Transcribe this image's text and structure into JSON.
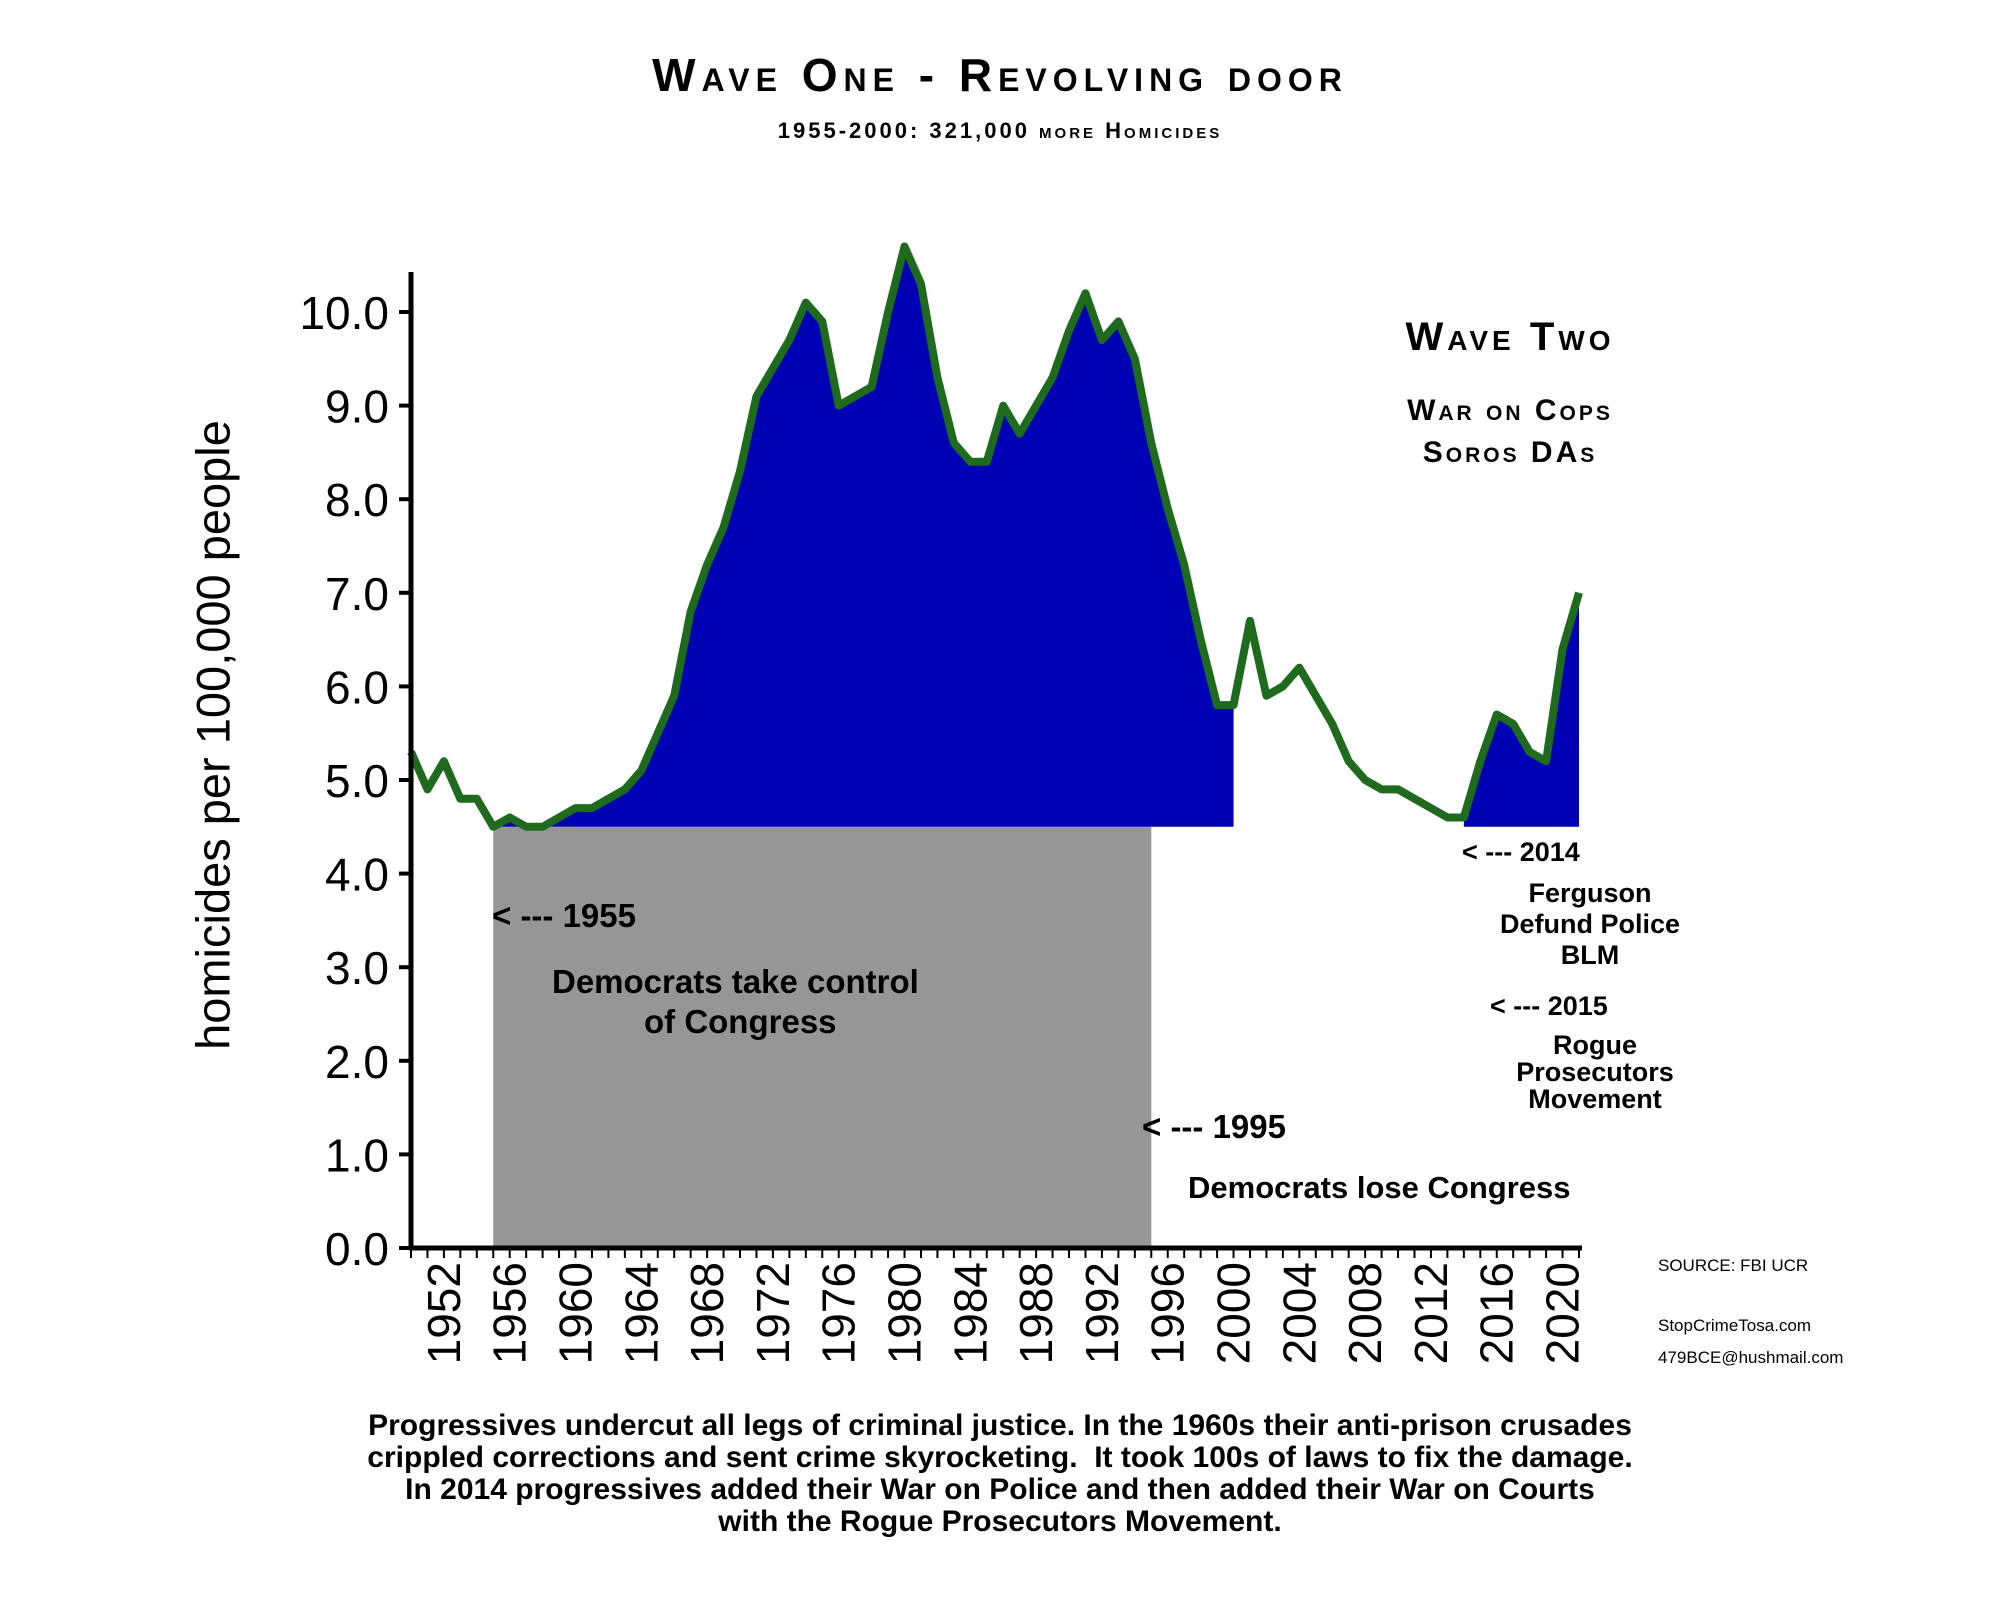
{
  "title": "Wave One - Revolving door",
  "subtitle": "1955-2000: 321,000 more Homicides",
  "wave_two": {
    "title": "Wave Two",
    "line1": "War on Cops",
    "line2": "Soros DAs"
  },
  "annotations": {
    "a1955": "< --- 1955",
    "dem_take_1": "Democrats take control",
    "dem_take_2": "of Congress",
    "a1995": "< --- 1995",
    "dem_lose": "Democrats lose Congress",
    "a2014": "< --- 2014",
    "ferguson_1": "Ferguson",
    "ferguson_2": "Defund Police",
    "ferguson_3": "BLM",
    "a2015": "< --- 2015",
    "rogue_1": "Rogue",
    "rogue_2": "Prosecutors",
    "rogue_3": "Movement"
  },
  "source": "SOURCE: FBI UCR",
  "site": "StopCrimeTosa.com",
  "email": "479BCE@hushmail.com",
  "caption": [
    "Progressives undercut all legs of criminal justice. In the 1960s their anti-prison crusades",
    "crippled corrections and sent crime skyrocketing.  It took 100s of laws to fix the damage.",
    "In 2014 progressives added their War on Police and then added their War on Courts",
    "with the Rogue Prosecutors Movement."
  ],
  "colors": {
    "line": "#1e6b1e",
    "fill": "#0000b4",
    "shade": "#969696"
  },
  "chart_data": {
    "type": "area",
    "xlabel": "",
    "ylabel": "homicides per 100,000 people",
    "xlim": [
      1950,
      2021
    ],
    "ylim": [
      0,
      10.0
    ],
    "x_ticks": [
      1952,
      1956,
      1960,
      1964,
      1968,
      1972,
      1976,
      1980,
      1984,
      1988,
      1992,
      1996,
      2000,
      2004,
      2008,
      2012,
      2016,
      2020
    ],
    "y_ticks": [
      0.0,
      1.0,
      2.0,
      3.0,
      4.0,
      5.0,
      6.0,
      7.0,
      8.0,
      9.0,
      10.0
    ],
    "baseline": 4.5,
    "shaded_range": [
      1955,
      1995
    ],
    "fill_ranges": [
      [
        1955,
        2000
      ],
      [
        2014,
        2021
      ]
    ],
    "series": [
      {
        "x": [
          1950,
          1951,
          1952,
          1953,
          1954,
          1955,
          1956,
          1957,
          1958,
          1959,
          1960,
          1961,
          1962,
          1963,
          1964,
          1965,
          1966,
          1967,
          1968,
          1969,
          1970,
          1971,
          1972,
          1973,
          1974,
          1975,
          1976,
          1977,
          1978,
          1979,
          1980,
          1981,
          1982,
          1983,
          1984,
          1985,
          1986,
          1987,
          1988,
          1989,
          1990,
          1991,
          1992,
          1993,
          1994,
          1995,
          1996,
          1997,
          1998,
          1999,
          2000,
          2001,
          2002,
          2003,
          2004,
          2005,
          2006,
          2007,
          2008,
          2009,
          2010,
          2011,
          2012,
          2013,
          2014,
          2015,
          2016,
          2017,
          2018,
          2019,
          2020,
          2021
        ],
        "values": [
          5.3,
          4.9,
          5.2,
          4.8,
          4.8,
          4.5,
          4.6,
          4.5,
          4.5,
          4.6,
          4.7,
          4.7,
          4.8,
          4.9,
          5.1,
          5.5,
          5.9,
          6.8,
          7.3,
          7.7,
          8.3,
          9.1,
          9.4,
          9.7,
          10.1,
          9.9,
          9.0,
          9.1,
          9.2,
          10.0,
          10.7,
          10.3,
          9.3,
          8.6,
          8.4,
          8.4,
          9.0,
          8.7,
          9.0,
          9.3,
          9.8,
          10.2,
          9.7,
          9.9,
          9.5,
          8.6,
          7.9,
          7.3,
          6.5,
          5.8,
          5.8,
          6.7,
          5.9,
          6.0,
          6.2,
          5.9,
          5.6,
          5.2,
          5.0,
          4.9,
          4.9,
          4.8,
          4.7,
          4.6,
          4.6,
          5.2,
          5.7,
          5.6,
          5.3,
          5.2,
          6.4,
          7.0
        ]
      }
    ]
  }
}
